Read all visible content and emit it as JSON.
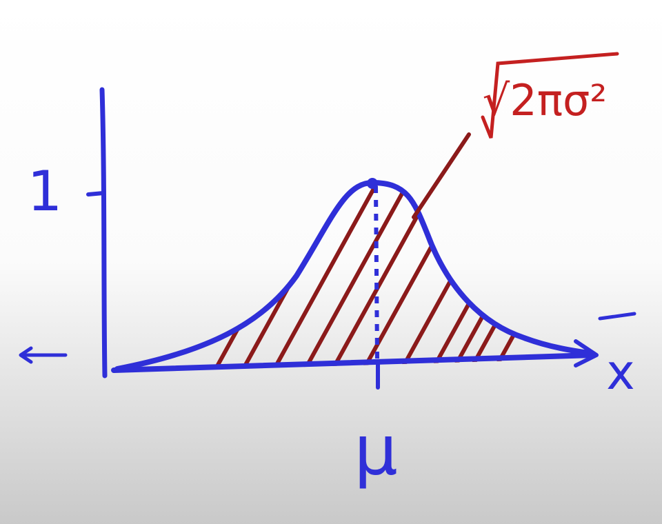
{
  "labels": {
    "y_tick": "1",
    "x_mark": "μ",
    "x_axis": "x",
    "annotation": "√2πσ²"
  }
}
